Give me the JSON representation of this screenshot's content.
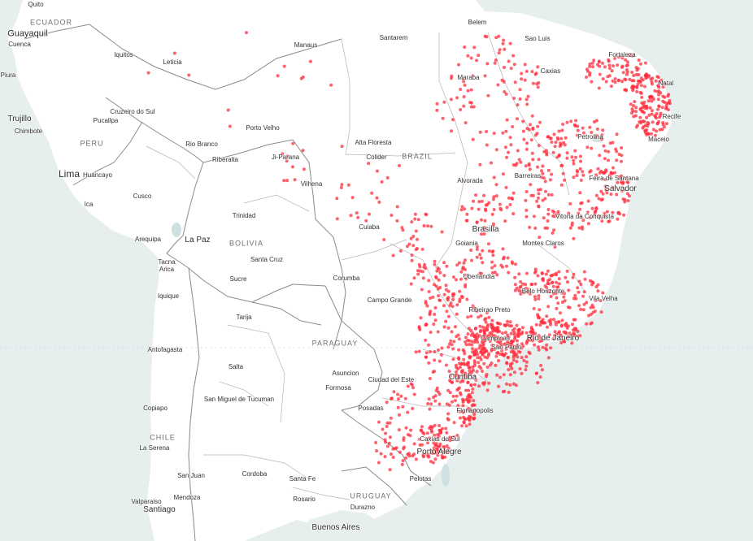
{
  "map": {
    "marker_color": "#ff2c3c",
    "land_color": "#ffffff",
    "water_color": "#e7eeee",
    "border_color": "#8a8a8a",
    "countries": [
      "ECUADOR",
      "PERU",
      "BRAZIL",
      "BOLIVIA",
      "PARAGUAY",
      "CHILE",
      "URUGUAY"
    ],
    "cities": [
      "Quito",
      "Guayaquil",
      "Cuenca",
      "Piura",
      "Trujillo",
      "Chimbote",
      "Iquitos",
      "Leticia",
      "Pucallpa",
      "Cruzeiro do Sul",
      "Lima",
      "Huancayo",
      "Ica",
      "Cusco",
      "Arequipa",
      "Tacna",
      "Arica",
      "La Paz",
      "Iquique",
      "Trinidad",
      "Santa Cruz",
      "Sucre",
      "Tarija",
      "Antofagasta",
      "Salta",
      "San Miguel de Tucuman",
      "Copiapo",
      "La Serena",
      "San Juan",
      "Cordoba",
      "Mendoza",
      "Valparaiso",
      "Santiago",
      "Rosario",
      "Santa Fe",
      "Buenos Aires",
      "Durazno",
      "Manaus",
      "Santarem",
      "Belem",
      "Sao Luis",
      "Fortaleza",
      "Caxias",
      "Maraba",
      "Natal",
      "Recife",
      "Petrolina",
      "Maceio",
      "Porto Velho",
      "Rio Branco",
      "Riberalta",
      "Ji-Parana",
      "Vilhena",
      "Alta Floresta",
      "Colider",
      "Cuiaba",
      "Barreiras",
      "Feira de Santana",
      "Salvador",
      "Alvorada",
      "Vitoria da Conquista",
      "Brasilia",
      "Goiania",
      "Montes Claros",
      "Corumba",
      "Uberlandia",
      "Belo Horizonte",
      "Campo Grande",
      "Ribeirao Preto",
      "Vila Velha",
      "Campinas",
      "Sao Paulo",
      "Rio de Janeiro",
      "Asuncion",
      "Ciudad del Este",
      "Formosa",
      "Curitiba",
      "Posadas",
      "Florianopolis",
      "Caxias do Sul",
      "Porto Alegre",
      "Pelotas"
    ]
  }
}
